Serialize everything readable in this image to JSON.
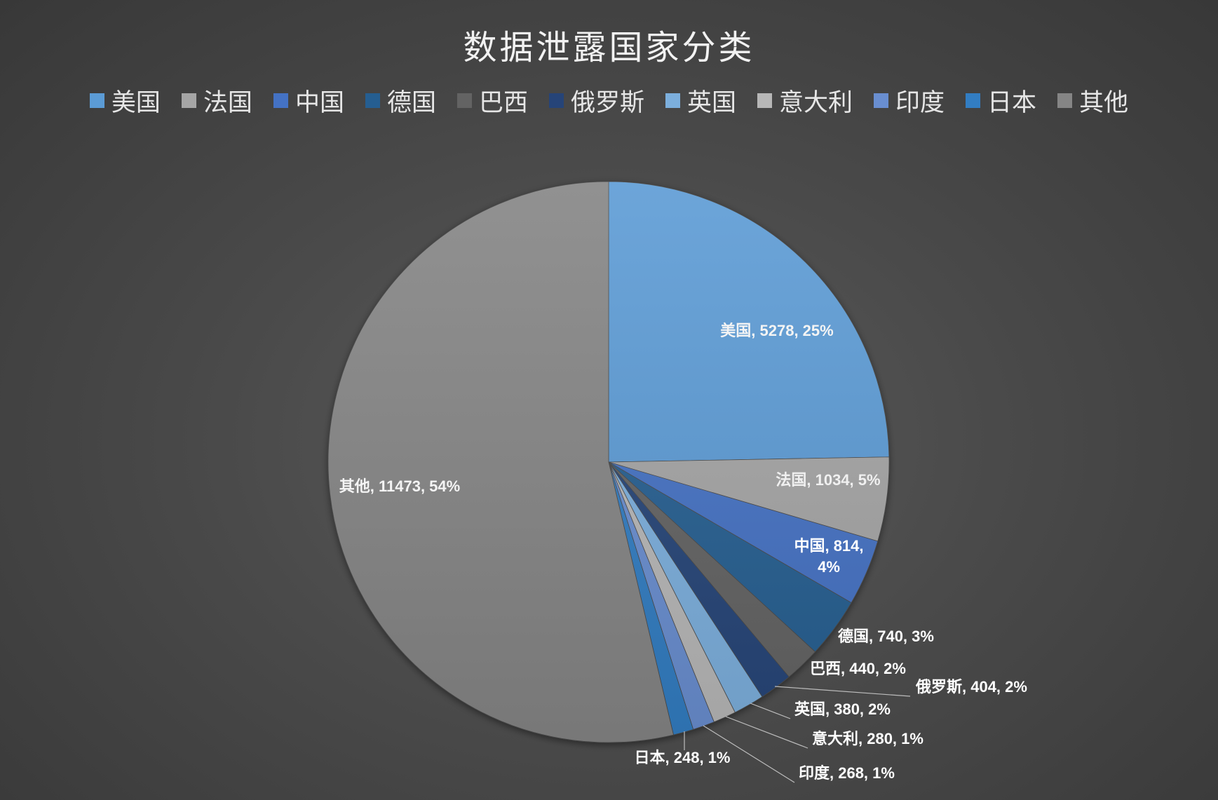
{
  "chart_data": {
    "type": "pie",
    "title": "数据泄露国家分类",
    "legend_position": "top",
    "slices": [
      {
        "name": "美国",
        "value": 5278,
        "percent": "25%",
        "color": "#5b9bd5"
      },
      {
        "name": "法国",
        "value": 1034,
        "percent": "5%",
        "color": "#a5a5a5"
      },
      {
        "name": "中国",
        "value": 814,
        "percent": "4%",
        "color": "#4472c4"
      },
      {
        "name": "德国",
        "value": 740,
        "percent": "3%",
        "color": "#255e91"
      },
      {
        "name": "巴西",
        "value": 440,
        "percent": "2%",
        "color": "#636363"
      },
      {
        "name": "俄罗斯",
        "value": 404,
        "percent": "2%",
        "color": "#264478"
      },
      {
        "name": "英国",
        "value": 380,
        "percent": "2%",
        "color": "#7cafdd"
      },
      {
        "name": "意大利",
        "value": 280,
        "percent": "1%",
        "color": "#b7b7b7"
      },
      {
        "name": "印度",
        "value": 268,
        "percent": "1%",
        "color": "#698ed0"
      },
      {
        "name": "日本",
        "value": 248,
        "percent": "1%",
        "color": "#327dc2"
      },
      {
        "name": "其他",
        "value": 11473,
        "percent": "54%",
        "color": "#858585"
      }
    ]
  }
}
